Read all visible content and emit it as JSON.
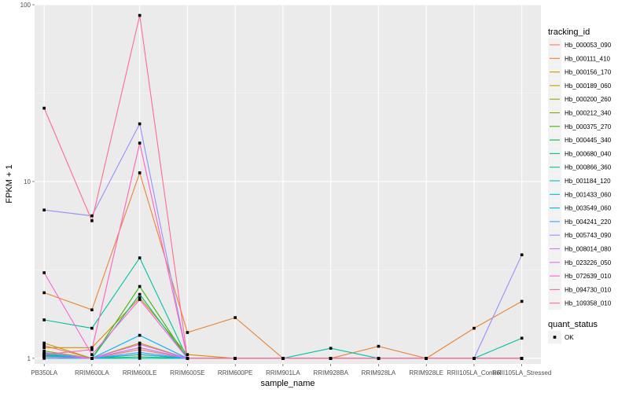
{
  "chart_data": {
    "type": "line",
    "xlabel": "sample_name",
    "ylabel": "FPKM + 1",
    "y_scale": "log10",
    "ylim": [
      0.93,
      100
    ],
    "y_ticks": [
      1,
      10,
      100
    ],
    "y_tick_labels": [
      "1",
      "10",
      "100"
    ],
    "categories": [
      "PB350LA",
      "RRIM600LA",
      "RRIM600LE",
      "RRIM600SE",
      "RRIM600PE",
      "RRIM901LA",
      "RRIM928BA",
      "RRIM928LA",
      "RRIM928LE",
      "RRII105LA_Control",
      "RRII105LA_Stressed"
    ],
    "grid": true,
    "legend_position": "right",
    "series": [
      {
        "name": "Hb_000053_090",
        "color": "#F8766D",
        "values": [
          1.18,
          1.0,
          1.12,
          1.0,
          1.0,
          1.0,
          1.0,
          1.0,
          1.0,
          1.0,
          1.0
        ]
      },
      {
        "name": "Hb_000111_410",
        "color": "#EA8331",
        "values": [
          2.35,
          1.88,
          11.2,
          1.4,
          1.7,
          1.0,
          1.0,
          1.17,
          1.0,
          1.48,
          2.1
        ]
      },
      {
        "name": "Hb_000156_170",
        "color": "#D89000",
        "values": [
          1.15,
          1.15,
          2.2,
          1.05,
          1.0,
          1.0,
          1.0,
          1.0,
          1.0,
          1.0,
          1.0
        ]
      },
      {
        "name": "Hb_000189_060",
        "color": "#C09B00",
        "values": [
          1.22,
          1.0,
          1.22,
          1.0,
          1.0,
          1.0,
          1.0,
          1.0,
          1.0,
          1.0,
          1.0
        ]
      },
      {
        "name": "Hb_000200_260",
        "color": "#A3A500",
        "values": [
          1.05,
          1.0,
          1.05,
          1.0,
          1.0,
          1.0,
          1.0,
          1.0,
          1.0,
          1.0,
          1.0
        ]
      },
      {
        "name": "Hb_000212_340",
        "color": "#7CAE00",
        "values": [
          1.1,
          1.0,
          1.15,
          1.0,
          1.0,
          1.0,
          1.0,
          1.0,
          1.0,
          1.0,
          1.0
        ]
      },
      {
        "name": "Hb_000375_270",
        "color": "#39B600",
        "values": [
          1.04,
          1.0,
          2.55,
          1.0,
          1.0,
          1.0,
          1.0,
          1.0,
          1.0,
          1.0,
          1.0
        ]
      },
      {
        "name": "Hb_000445_340",
        "color": "#00BB4E",
        "values": [
          1.02,
          1.0,
          1.02,
          1.0,
          1.0,
          1.0,
          1.0,
          1.0,
          1.0,
          1.0,
          1.0
        ]
      },
      {
        "name": "Hb_000680_040",
        "color": "#00BF7D",
        "values": [
          1.07,
          1.0,
          2.3,
          1.0,
          1.0,
          1.0,
          1.0,
          1.0,
          1.0,
          1.0,
          1.0
        ]
      },
      {
        "name": "Hb_000866_360",
        "color": "#00C1A3",
        "values": [
          1.65,
          1.48,
          3.7,
          1.0,
          1.0,
          1.0,
          1.14,
          1.0,
          1.0,
          1.0,
          1.3
        ]
      },
      {
        "name": "Hb_001184_120",
        "color": "#00BFC4",
        "values": [
          1.0,
          1.0,
          1.0,
          1.0,
          1.0,
          1.0,
          1.0,
          1.0,
          1.0,
          1.0,
          1.0
        ]
      },
      {
        "name": "Hb_001433_060",
        "color": "#00BAE0",
        "values": [
          1.03,
          1.0,
          1.05,
          1.0,
          1.0,
          1.0,
          1.0,
          1.0,
          1.0,
          1.0,
          1.0
        ]
      },
      {
        "name": "Hb_003549_060",
        "color": "#00B0F6",
        "values": [
          1.05,
          1.0,
          1.35,
          1.0,
          1.0,
          1.0,
          1.0,
          1.0,
          1.0,
          1.0,
          1.0
        ]
      },
      {
        "name": "Hb_004241_220",
        "color": "#35A2FF",
        "values": [
          1.02,
          1.0,
          1.08,
          1.0,
          1.0,
          1.0,
          1.0,
          1.0,
          1.0,
          1.0,
          1.0
        ]
      },
      {
        "name": "Hb_005743_090",
        "color": "#9590FF",
        "values": [
          6.9,
          6.4,
          21.2,
          1.0,
          1.0,
          1.0,
          1.0,
          1.0,
          1.0,
          1.0,
          3.85
        ]
      },
      {
        "name": "Hb_008014_080",
        "color": "#C77CFF",
        "values": [
          1.08,
          1.0,
          1.15,
          1.0,
          1.0,
          1.0,
          1.0,
          1.0,
          1.0,
          1.0,
          1.0
        ]
      },
      {
        "name": "Hb_023226_050",
        "color": "#E76BF3",
        "values": [
          1.02,
          1.0,
          1.2,
          1.0,
          1.0,
          1.0,
          1.0,
          1.0,
          1.0,
          1.0,
          1.0
        ]
      },
      {
        "name": "Hb_072639_010",
        "color": "#FA62DB",
        "values": [
          3.05,
          1.05,
          2.15,
          1.0,
          1.0,
          1.0,
          1.0,
          1.0,
          1.0,
          1.0,
          1.0
        ]
      },
      {
        "name": "Hb_094730_010",
        "color": "#FF62BC",
        "values": [
          1.05,
          1.12,
          16.5,
          1.0,
          1.0,
          1.0,
          1.0,
          1.0,
          1.0,
          1.0,
          1.0
        ]
      },
      {
        "name": "Hb_109358_010",
        "color": "#FF6C91",
        "values": [
          26.0,
          6.0,
          87.0,
          1.0,
          1.0,
          1.0,
          1.0,
          1.0,
          1.0,
          1.0,
          1.0
        ]
      }
    ],
    "legends": [
      {
        "title": "tracking_id"
      },
      {
        "title": "quant_status",
        "entries": [
          "OK"
        ]
      }
    ]
  }
}
